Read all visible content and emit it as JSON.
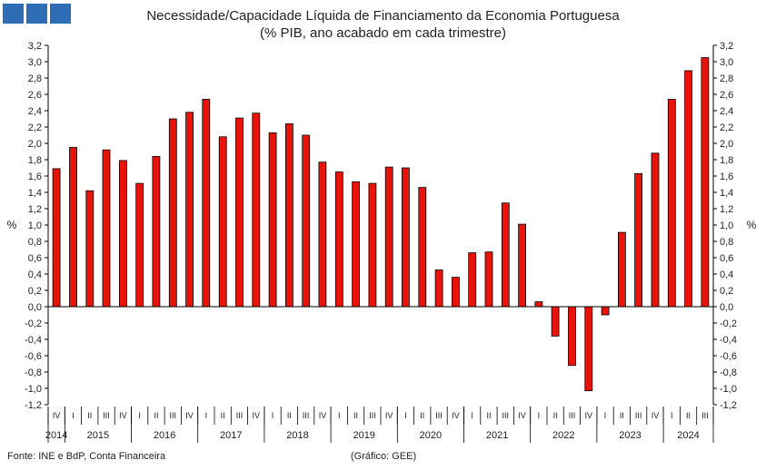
{
  "header": {
    "title": "Necessidade/Capacidade Líquida de Financiamento da Economia Portuguesa",
    "subtitle": "(% PIB, ano acabado em cada trimestre)",
    "logo_color": "#2e6db4"
  },
  "footer": {
    "source": "Fonte: INE e BdP, Conta Financeira",
    "credit": "(Gráfico: GEE)"
  },
  "chart_data": {
    "type": "bar",
    "title": "Necessidade/Capacidade Líquida de Financiamento da Economia Portuguesa",
    "subtitle": "(% PIB, ano acabado em cada trimestre)",
    "ylabel_left": "%",
    "ylabel_right": "%",
    "ylim": [
      -1.2,
      3.2
    ],
    "ytick_step": 0.2,
    "bar_color": "#e8140c",
    "bar_edge_color": "#000000",
    "grid": false,
    "quarters": [
      "IV",
      "I",
      "II",
      "III",
      "IV",
      "I",
      "II",
      "III",
      "IV",
      "I",
      "II",
      "III",
      "IV",
      "I",
      "II",
      "III",
      "IV",
      "I",
      "II",
      "III",
      "IV",
      "I",
      "II",
      "III",
      "IV",
      "I",
      "II",
      "III",
      "IV",
      "I",
      "II",
      "III",
      "IV",
      "I",
      "II",
      "III",
      "IV",
      "I",
      "II",
      "III"
    ],
    "years": [
      {
        "label": "2014",
        "count": 1
      },
      {
        "label": "2015",
        "count": 4
      },
      {
        "label": "2016",
        "count": 4
      },
      {
        "label": "2017",
        "count": 4
      },
      {
        "label": "2018",
        "count": 4
      },
      {
        "label": "2019",
        "count": 4
      },
      {
        "label": "2020",
        "count": 4
      },
      {
        "label": "2021",
        "count": 4
      },
      {
        "label": "2022",
        "count": 4
      },
      {
        "label": "2023",
        "count": 4
      },
      {
        "label": "2024",
        "count": 3
      }
    ],
    "values": [
      1.69,
      1.95,
      1.42,
      1.92,
      1.79,
      1.51,
      1.84,
      2.3,
      2.38,
      2.54,
      2.08,
      2.31,
      2.37,
      2.13,
      2.24,
      2.1,
      1.77,
      1.65,
      1.53,
      1.51,
      1.71,
      1.7,
      1.46,
      0.45,
      0.36,
      0.66,
      0.67,
      1.27,
      1.01,
      0.06,
      -0.36,
      -0.72,
      -1.03,
      -0.1,
      0.91,
      1.63,
      1.88,
      2.54,
      2.89,
      3.05
    ]
  }
}
